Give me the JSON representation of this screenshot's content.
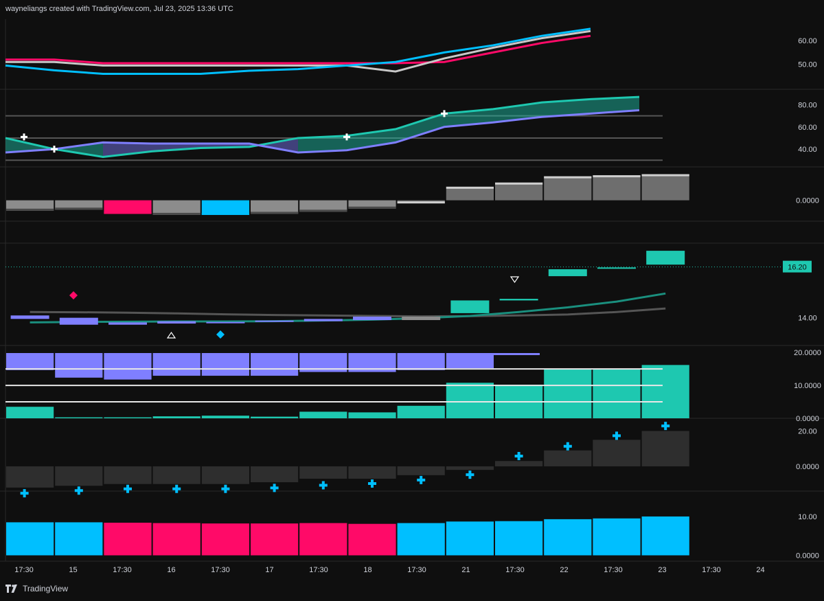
{
  "header": {
    "credit": "wayneliangs created with TradingView.com, Jul 23, 2025 13:36 UTC"
  },
  "brand": {
    "name": "TradingView"
  },
  "colors": {
    "bg": "#0f0f0f",
    "grid": "#2a2a2a",
    "text": "#d1d4dc",
    "cyan": "#00bfff",
    "pink": "#ff0a68",
    "teal": "#1ec8b0",
    "purple": "#7f7fff",
    "grey": "#8c8c8c",
    "lightgrey": "#c8c8c8",
    "darkgrey": "#2e2e2e"
  },
  "chart_data": {
    "type": "line",
    "x_ticks": [
      "17:30",
      "15",
      "17:30",
      "16",
      "17:30",
      "17",
      "17:30",
      "18",
      "17:30",
      "21",
      "17:30",
      "22",
      "17:30",
      "23",
      "17:30",
      "24"
    ],
    "panes": [
      {
        "id": "pane1",
        "type": "line",
        "yticks": [
          50,
          60
        ],
        "ylim": [
          39.5,
          69
        ],
        "series": [
          {
            "color": "#ff0a68",
            "values": [
              52,
              52,
              50.5,
              50.5,
              50.5,
              50.5,
              50.5,
              50.5,
              50.5,
              51,
              55,
              59,
              62
            ]
          },
          {
            "color": "#c8c8c8",
            "values": [
              51,
              51,
              49.5,
              49.5,
              49.5,
              49.5,
              49.5,
              49.5,
              47,
              52.5,
              57,
              61,
              64
            ]
          },
          {
            "color": "#00bfff",
            "values": [
              49.5,
              47.5,
              46,
              46,
              46,
              47.3,
              48,
              49.5,
              51,
              55,
              58,
              62,
              65
            ]
          }
        ]
      },
      {
        "id": "pane2",
        "type": "line",
        "yticks": [
          40,
          60,
          80
        ],
        "ylim": [
          24,
          92
        ],
        "hlines": [
          70,
          50,
          30
        ],
        "series": [
          {
            "color": "#1ec8b0",
            "values": [
              50,
              40,
              33,
              38,
              41,
              42,
              50,
              52,
              58,
              72,
              76,
              82,
              85,
              87
            ]
          },
          {
            "color": "#7f7fff",
            "values": [
              37,
              40,
              46,
              45,
              45,
              45,
              37,
              39,
              46,
              60,
              64,
              69,
              72,
              75
            ]
          }
        ],
        "cross_markers": [
          {
            "x": 0,
            "y": 51
          },
          {
            "x": 1,
            "y": 40
          },
          {
            "x": 7,
            "y": 51
          },
          {
            "x": 9,
            "y": 72
          }
        ]
      },
      {
        "id": "pane3",
        "type": "bar",
        "yticks": [
          0
        ],
        "ylim": [
          -20,
          30
        ],
        "values": [
          -10,
          -9,
          -13,
          -14,
          -14,
          -13,
          -11,
          -8,
          -3,
          13,
          17,
          23,
          24,
          25
        ],
        "colors": [
          "#8c8c8c",
          "#8c8c8c",
          "#ff0a68",
          "#8c8c8c",
          "#00bfff",
          "#8c8c8c",
          "#8c8c8c",
          "#8c8c8c",
          "#c8c8c8",
          "#c8c8c8",
          "#c8c8c8",
          "#c8c8c8",
          "#c8c8c8",
          "#c8c8c8"
        ]
      },
      {
        "id": "pane4",
        "type": "candlestick",
        "yticks": [
          14
        ],
        "ylim": [
          12.8,
          17.2
        ],
        "price_label": "16.20",
        "price_value": 16.2,
        "candles": [
          {
            "open": 14.1,
            "close": 13.95,
            "color": "#7f7fff"
          },
          {
            "open": 14.0,
            "close": 13.7,
            "color": "#7f7fff"
          },
          {
            "open": 13.8,
            "close": 13.7,
            "color": "#7f7fff"
          },
          {
            "open": 13.85,
            "close": 13.75,
            "color": "#7f7fff"
          },
          {
            "open": 13.82,
            "close": 13.8,
            "color": "#7f7fff"
          },
          {
            "open": 13.82,
            "close": 13.88,
            "color": "#7f7fff"
          },
          {
            "open": 13.85,
            "close": 13.95,
            "color": "#7f7fff"
          },
          {
            "open": 13.9,
            "close": 14.05,
            "color": "#7f7fff"
          },
          {
            "open": 13.9,
            "close": 14.05,
            "color": "#8c8c8c"
          },
          {
            "open": 14.2,
            "close": 14.75,
            "color": "#1ec8b0"
          },
          {
            "open": 14.75,
            "close": 14.82,
            "color": "#1ec8b0"
          },
          {
            "open": 15.8,
            "close": 16.1,
            "color": "#1ec8b0"
          },
          {
            "open": 16.15,
            "close": 16.18,
            "color": "#1ec8b0"
          },
          {
            "open": 16.3,
            "close": 16.9,
            "color": "#1ec8b0"
          }
        ],
        "ma_fast": [
          13.8,
          13.82,
          13.83,
          13.84,
          13.84,
          13.85,
          13.88,
          13.92,
          13.98,
          14.08,
          14.25,
          14.45,
          14.7,
          15.05
        ],
        "ma_slow": [
          14.25,
          14.24,
          14.22,
          14.19,
          14.15,
          14.12,
          14.1,
          14.08,
          14.06,
          14.07,
          14.1,
          14.14,
          14.25,
          14.4
        ]
      },
      {
        "id": "pane5",
        "type": "bar",
        "yticks": [
          0,
          10,
          20
        ],
        "ylim": [
          0,
          21.5
        ],
        "hlines": [
          15,
          10,
          5
        ],
        "values_top": [
          -4.5,
          -6.5,
          -7,
          -6,
          -6,
          -6,
          -5,
          -5,
          -4.5,
          -4,
          0,
          0,
          0,
          0
        ],
        "values_bottom": [
          3.5,
          0.3,
          0.3,
          0.6,
          0.8,
          0.5,
          2,
          1.8,
          3.8,
          10.8,
          10.2,
          15,
          15,
          16.2
        ],
        "top_color": "#7f7fff",
        "bottom_color": "#1ec8b0",
        "note": ""
      },
      {
        "id": "pane6",
        "type": "bar",
        "yticks": [
          0,
          20
        ],
        "ylim": [
          -14,
          26
        ],
        "values": [
          -12,
          -11,
          -10,
          -10,
          -10,
          -9,
          -7,
          -7,
          -5,
          -2,
          3,
          9,
          15,
          20
        ],
        "markers": [
          -12.5,
          -11,
          -10,
          -10,
          -10,
          -9.5,
          -8,
          -7,
          -5,
          -2,
          3.5,
          9,
          15,
          20.5
        ],
        "bar_color": "#2e2e2e",
        "marker_color": "#00bfff"
      },
      {
        "id": "pane7",
        "type": "bar",
        "yticks": [
          0,
          10
        ],
        "ylim": [
          -1.5,
          16
        ],
        "values": [
          8.5,
          8.5,
          8.4,
          8.3,
          8.2,
          8.2,
          8.3,
          8.1,
          8.3,
          8.7,
          8.8,
          9.3,
          9.5,
          10
        ],
        "colors": [
          "#00bfff",
          "#00bfff",
          "#ff0a68",
          "#ff0a68",
          "#ff0a68",
          "#ff0a68",
          "#ff0a68",
          "#ff0a68",
          "#00bfff",
          "#00bfff",
          "#00bfff",
          "#00bfff",
          "#00bfff",
          "#00bfff"
        ]
      }
    ]
  }
}
